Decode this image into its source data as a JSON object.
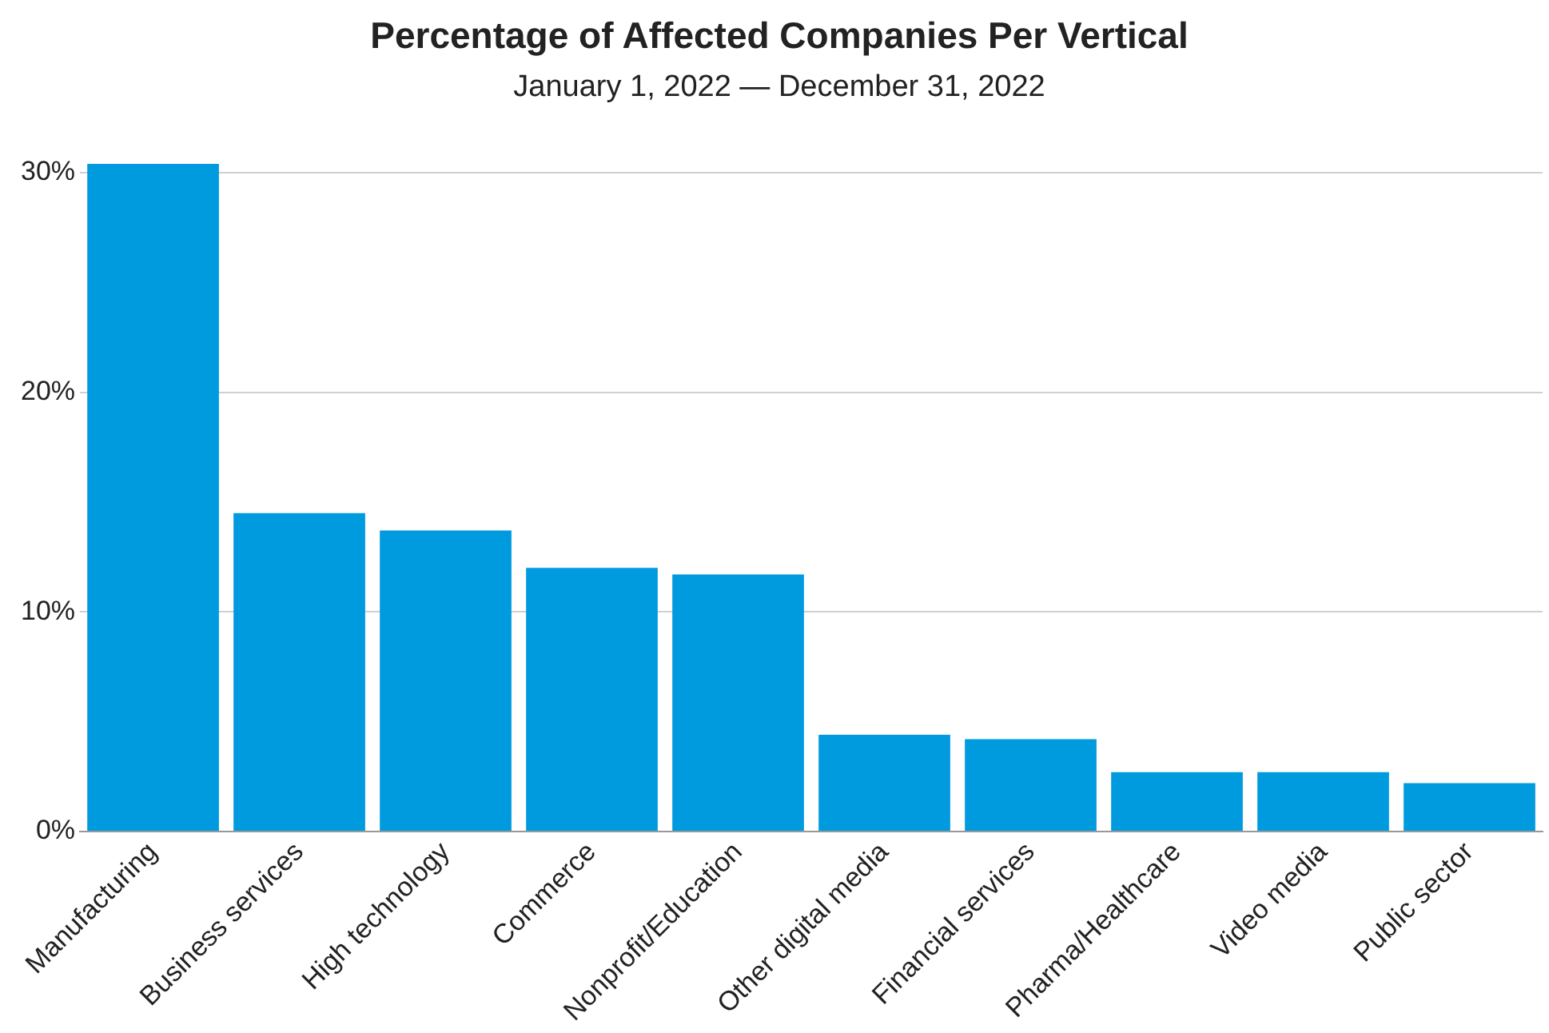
{
  "chart_data": {
    "type": "bar",
    "title": "Percentage of Affected Companies Per Vertical",
    "subtitle": "January 1, 2022 — December 31, 2022",
    "categories": [
      "Manufacturing",
      "Business services",
      "High technology",
      "Commerce",
      "Nonprofit/Education",
      "Other digital media",
      "Financial services",
      "Pharma/Healthcare",
      "Video media",
      "Public sector"
    ],
    "values": [
      30.4,
      14.5,
      13.7,
      12.0,
      11.7,
      4.4,
      4.2,
      2.7,
      2.7,
      2.2
    ],
    "color": "#009ade",
    "ylim": [
      0,
      30.4
    ],
    "yticks": [
      {
        "value": 0,
        "label": "0%"
      },
      {
        "value": 10,
        "label": "10%"
      },
      {
        "value": 20,
        "label": "20%"
      },
      {
        "value": 30,
        "label": "30%"
      }
    ],
    "grid": "y",
    "legend": false
  }
}
